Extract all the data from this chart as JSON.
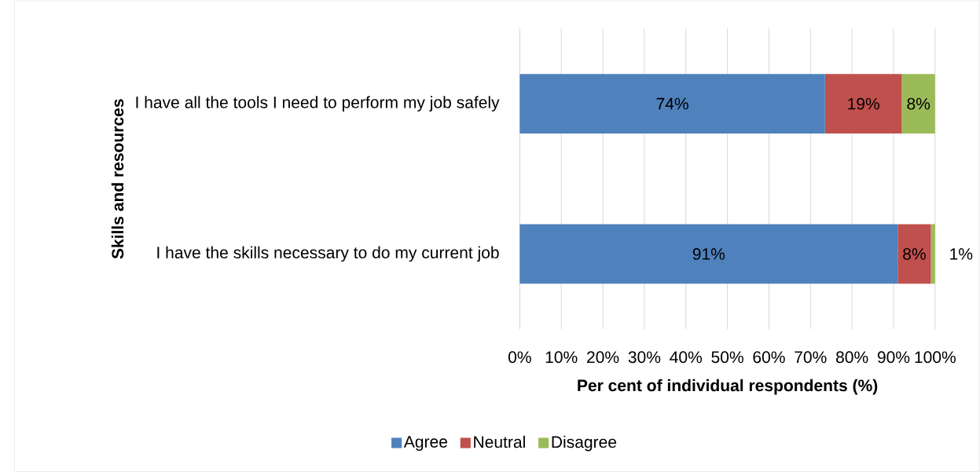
{
  "chart_data": {
    "type": "bar",
    "orientation": "horizontal",
    "stacked": true,
    "xlabel": "Per cent of individual respondents (%)",
    "ylabel": "Skills and resources",
    "categories": [
      "I have all the tools I need to perform my job safely",
      "I have the skills necessary to do my current job"
    ],
    "series": [
      {
        "name": "Agree",
        "color": "#4f81bd",
        "values": [
          73.5,
          91
        ],
        "value_labels": [
          "74%",
          "91%"
        ]
      },
      {
        "name": "Neutral",
        "color": "#c0504d",
        "values": [
          18.5,
          8
        ],
        "value_labels": [
          "19%",
          "8%"
        ]
      },
      {
        "name": "Disagree",
        "color": "#9bbb59",
        "values": [
          8,
          1
        ],
        "value_labels": [
          "8%",
          "1%"
        ]
      }
    ],
    "xlim": [
      0,
      100
    ],
    "xticks": [
      {
        "value": 0,
        "label": "0%"
      },
      {
        "value": 10,
        "label": "10%"
      },
      {
        "value": 20,
        "label": "20%"
      },
      {
        "value": 30,
        "label": "30%"
      },
      {
        "value": 40,
        "label": "40%"
      },
      {
        "value": 50,
        "label": "50%"
      },
      {
        "value": 60,
        "label": "60%"
      },
      {
        "value": 70,
        "label": "70%"
      },
      {
        "value": 80,
        "label": "80%"
      },
      {
        "value": 90,
        "label": "90%"
      },
      {
        "value": 100,
        "label": "100%"
      }
    ],
    "grid": "x",
    "legend": "bottom"
  }
}
